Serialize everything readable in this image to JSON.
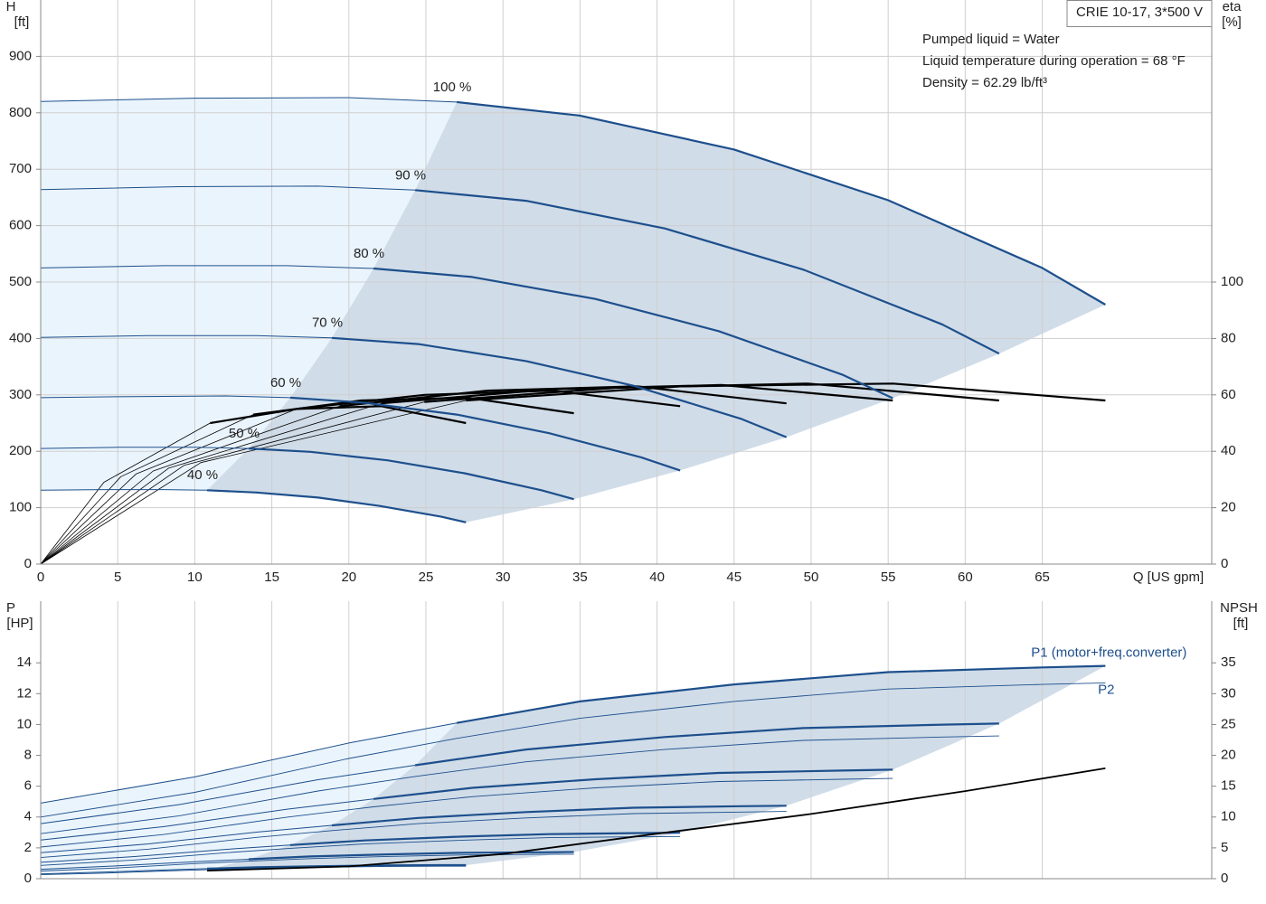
{
  "chart_data": [
    {
      "type": "line",
      "title": "CRIE 10-17, 3*500 V",
      "annotations": [
        "Pumped liquid = Water",
        "Liquid temperature during operation = 68 °F",
        "Density = 62.29 lb/ft³"
      ],
      "x_label": "Q [US gpm]",
      "y_label": "H",
      "y_unit": "[ft]",
      "y2_label": "eta",
      "y2_unit": "[%]",
      "xlim": [
        0,
        76
      ],
      "ylim": [
        0,
        1000
      ],
      "y2lim": [
        0,
        200
      ],
      "xticks": [
        0,
        5,
        10,
        15,
        20,
        25,
        30,
        35,
        40,
        45,
        50,
        55,
        60,
        65
      ],
      "yticks": [
        0,
        100,
        200,
        300,
        400,
        500,
        600,
        700,
        800,
        900
      ],
      "y2ticks": [
        0,
        20,
        40,
        60,
        80,
        100
      ],
      "grid": true,
      "line_color": "#1d4f8c",
      "eta_color": "#000000",
      "range_fill": "#d0dce8",
      "low_fill": "#eaf4fc",
      "series": [
        {
          "name": "100 %",
          "x": [
            0,
            10,
            20,
            27,
            35,
            45,
            55,
            65,
            69.1
          ],
          "values": [
            820,
            826,
            827,
            819,
            795,
            735,
            645,
            525,
            460
          ]
        },
        {
          "name": "90 %",
          "x": [
            0,
            9,
            18,
            24.3,
            31.5,
            40.5,
            49.5,
            58.5,
            62.2
          ],
          "values": [
            664,
            669,
            670,
            663,
            644,
            595,
            522,
            425,
            373
          ]
        },
        {
          "name": "80 %",
          "x": [
            0,
            8,
            16,
            21.6,
            28,
            36,
            44,
            52,
            55.3
          ],
          "values": [
            525,
            529,
            529,
            524,
            509,
            470,
            413,
            336,
            294
          ]
        },
        {
          "name": "70 %",
          "x": [
            0,
            7,
            14,
            18.9,
            24.5,
            31.5,
            38.5,
            45.5,
            48.4
          ],
          "values": [
            402,
            405,
            405,
            401,
            390,
            360,
            316,
            257,
            225
          ]
        },
        {
          "name": "60 %",
          "x": [
            0,
            6,
            12,
            16.2,
            21,
            27,
            33,
            39,
            41.5
          ],
          "values": [
            295,
            297,
            298,
            295,
            286,
            265,
            232,
            189,
            166
          ]
        },
        {
          "name": "50 %",
          "x": [
            0,
            5,
            10,
            13.5,
            17.5,
            22.5,
            27.5,
            32.5,
            34.6
          ],
          "values": [
            205,
            207,
            207,
            205,
            199,
            184,
            161,
            131,
            115
          ]
        },
        {
          "name": "40 %",
          "x": [
            0,
            4,
            8,
            10.8,
            14,
            18,
            22,
            26,
            27.6
          ],
          "values": [
            131,
            132,
            132,
            131,
            127,
            118,
            103,
            84,
            74
          ]
        }
      ],
      "eta_series": [
        {
          "axis": "y2",
          "x": [
            0,
            10.4,
            27.6,
            41.5,
            55.3,
            69.1
          ],
          "values": [
            0,
            36,
            58,
            63,
            64,
            58
          ]
        },
        {
          "axis": "y2",
          "x": [
            0,
            9.3,
            24.9,
            37.3,
            49.8,
            62.2
          ],
          "values": [
            0,
            35,
            57.5,
            62.5,
            64,
            58
          ]
        },
        {
          "axis": "y2",
          "x": [
            0,
            8.3,
            22.1,
            33.2,
            44.2,
            55.3
          ],
          "values": [
            0,
            34,
            57,
            62,
            63.5,
            58
          ]
        },
        {
          "axis": "y2",
          "x": [
            0,
            7.3,
            19.4,
            29,
            38.7,
            48.4
          ],
          "values": [
            0,
            33,
            56,
            61.5,
            63,
            57
          ]
        },
        {
          "axis": "y2",
          "x": [
            0,
            6.2,
            16.6,
            24.9,
            33.2,
            41.5
          ],
          "values": [
            0,
            32,
            55,
            60,
            61.5,
            56
          ]
        },
        {
          "axis": "y2",
          "x": [
            0,
            5.2,
            13.8,
            20.8,
            27.7,
            34.6
          ],
          "values": [
            0,
            31,
            53,
            58,
            59,
            53.5
          ]
        },
        {
          "axis": "y2",
          "x": [
            0,
            4.1,
            11,
            16.6,
            22.1,
            27.6
          ],
          "values": [
            0,
            29,
            50,
            55,
            56,
            50
          ]
        }
      ]
    },
    {
      "type": "line",
      "y_label": "P",
      "y_unit": "[HP]",
      "y2_label": "NPSH",
      "y2_unit": "[ft]",
      "xlim": [
        0,
        76
      ],
      "ylim": [
        0,
        18
      ],
      "y2lim": [
        0,
        45
      ],
      "yticks": [
        0,
        2,
        4,
        6,
        8,
        10,
        12,
        14
      ],
      "y2ticks": [
        0,
        5,
        10,
        15,
        20,
        25,
        30,
        35
      ],
      "xgrid": true,
      "range_fill": "#d0dce8",
      "low_fill": "#eaf4fc",
      "p1": {
        "name": "P1 (motor+freq.converter)",
        "color": "#1d4f8c",
        "curves": [
          {
            "values": [
              4.9,
              6.6,
              8.8,
              10.1,
              11.5,
              12.6,
              13.4,
              13.7,
              13.8
            ]
          },
          {
            "values": [
              3.57,
              4.81,
              6.42,
              7.36,
              8.38,
              9.19,
              9.77,
              9.99,
              10.06
            ]
          },
          {
            "values": [
              2.51,
              3.38,
              4.51,
              5.17,
              5.89,
              6.45,
              6.86,
              7.01,
              7.07
            ]
          },
          {
            "values": [
              1.68,
              2.26,
              3.02,
              3.46,
              3.94,
              4.32,
              4.6,
              4.7,
              4.73
            ]
          },
          {
            "values": [
              1.06,
              1.43,
              1.9,
              2.18,
              2.48,
              2.72,
              2.89,
              2.96,
              2.98
            ]
          },
          {
            "values": [
              0.61,
              0.83,
              1.1,
              1.26,
              1.44,
              1.58,
              1.68,
              1.71,
              1.73
            ]
          },
          {
            "values": [
              0.31,
              0.42,
              0.56,
              0.65,
              0.74,
              0.81,
              0.86,
              0.88,
              0.88
            ]
          }
        ]
      },
      "p2": {
        "name": "P2",
        "color": "#1d4f8c",
        "curves": [
          {
            "values": [
              4.0,
              5.6,
              7.8,
              9.1,
              10.4,
              11.5,
              12.3,
              12.6,
              12.7
            ]
          },
          {
            "values": [
              2.92,
              4.08,
              5.69,
              6.63,
              7.58,
              8.38,
              8.97,
              9.19,
              9.26
            ]
          },
          {
            "values": [
              2.05,
              2.87,
              3.99,
              4.66,
              5.32,
              5.89,
              6.3,
              6.45,
              6.5
            ]
          },
          {
            "values": [
              1.37,
              1.92,
              2.68,
              3.12,
              3.57,
              3.94,
              4.22,
              4.32,
              4.36
            ]
          },
          {
            "values": [
              0.86,
              1.21,
              1.68,
              1.97,
              2.25,
              2.48,
              2.66,
              2.72,
              2.74
            ]
          },
          {
            "values": [
              0.5,
              0.7,
              0.98,
              1.14,
              1.3,
              1.44,
              1.54,
              1.58,
              1.59
            ]
          },
          {
            "values": [
              0.26,
              0.36,
              0.5,
              0.58,
              0.67,
              0.74,
              0.79,
              0.81,
              0.81
            ]
          }
        ]
      },
      "npsh": {
        "axis": "y2",
        "color": "#000000",
        "x": [
          10.8,
          20,
          30,
          40,
          50,
          60,
          69.1
        ],
        "values": [
          1.3,
          2.0,
          4.0,
          7.3,
          10.5,
          14.2,
          17.9
        ]
      }
    }
  ]
}
